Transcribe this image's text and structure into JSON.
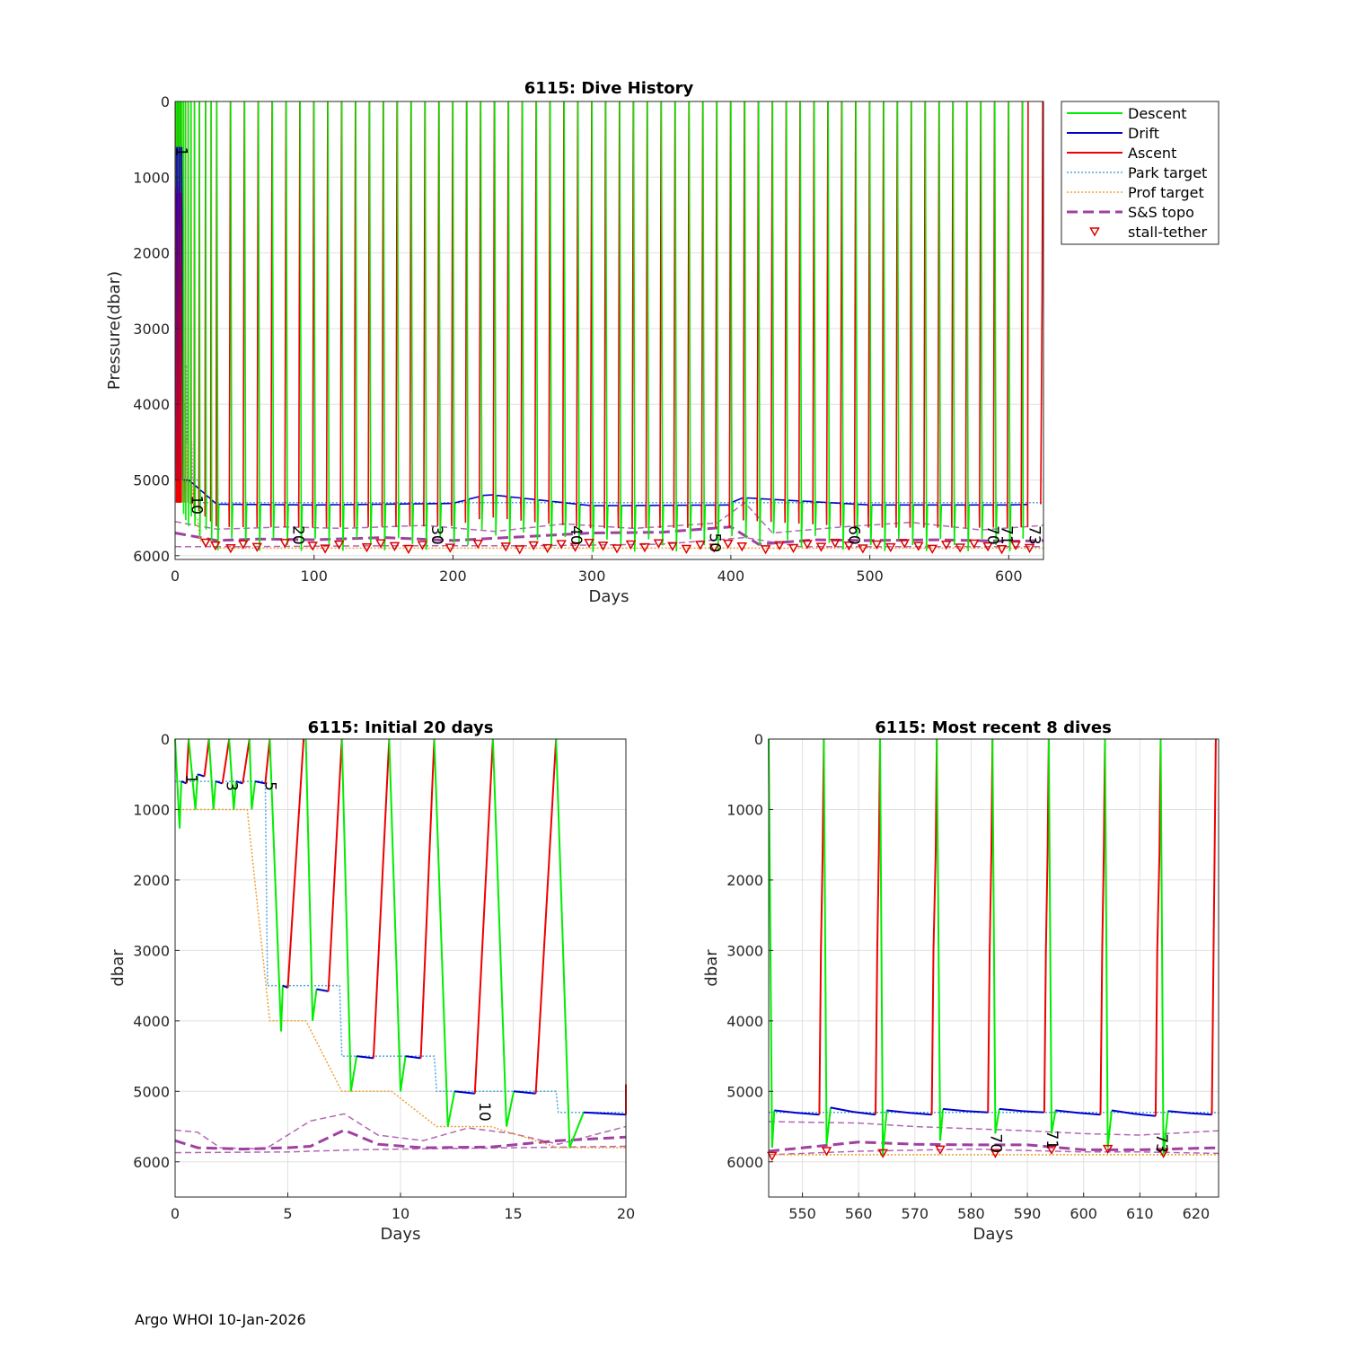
{
  "footer": {
    "credit": "Argo WHOI 10-Jan-2026"
  },
  "colors": {
    "descent": "#00ee00",
    "drift": "#0000cc",
    "ascent": "#ee0000",
    "park_target": "#4da6e0",
    "prof_target": "#f0a030",
    "topo": "#a040a0",
    "stall": "#dd0000",
    "grid": "#e0e0e0"
  },
  "legend": {
    "entries": [
      {
        "label": "Descent",
        "style": "descent"
      },
      {
        "label": "Drift",
        "style": "drift"
      },
      {
        "label": "Ascent",
        "style": "ascent"
      },
      {
        "label": "Park target",
        "style": "park"
      },
      {
        "label": "Prof target",
        "style": "prof"
      },
      {
        "label": "S&S topo",
        "style": "topo"
      },
      {
        "label": "stall-tether",
        "style": "stall"
      }
    ]
  },
  "chart_data": [
    {
      "id": "history",
      "type": "line",
      "title": "6115: Dive History",
      "xlabel": "Days",
      "ylabel": "Pressure(dbar)",
      "xlim": [
        0,
        625
      ],
      "ylim": [
        0,
        6050
      ],
      "xticks": [
        0,
        100,
        200,
        300,
        400,
        500,
        600
      ],
      "yticks": [
        0,
        1000,
        2000,
        3000,
        4000,
        5000,
        6000
      ],
      "dive_days": [
        0.5,
        1,
        1.5,
        2,
        2.5,
        3,
        3.5,
        4,
        4.5,
        6,
        7.5,
        9.5,
        11.5,
        14,
        17.5,
        22,
        26,
        30,
        40,
        50,
        60,
        70,
        80,
        90,
        100,
        110,
        120,
        130,
        140,
        150,
        160,
        170,
        180,
        190,
        200,
        210,
        220,
        230,
        240,
        250,
        260,
        270,
        280,
        290,
        300,
        310,
        320,
        330,
        340,
        350,
        360,
        370,
        380,
        390,
        400,
        410,
        420,
        430,
        440,
        450,
        460,
        470,
        480,
        490,
        500,
        510,
        520,
        530,
        540,
        550,
        560,
        570,
        580,
        590,
        600,
        610,
        614
      ],
      "drift_points": [
        [
          10,
          5000
        ],
        [
          30,
          5320
        ],
        [
          100,
          5330
        ],
        [
          200,
          5310
        ],
        [
          225,
          5190
        ],
        [
          300,
          5340
        ],
        [
          400,
          5330
        ],
        [
          405,
          5230
        ],
        [
          500,
          5330
        ],
        [
          600,
          5330
        ],
        [
          625,
          5320
        ]
      ],
      "park_target": [
        [
          0,
          600
        ],
        [
          4,
          600
        ],
        [
          4.5,
          3500
        ],
        [
          8,
          3500
        ],
        [
          8.5,
          4500
        ],
        [
          12,
          4500
        ],
        [
          12.5,
          5000
        ],
        [
          17,
          5000
        ],
        [
          17.5,
          5300
        ],
        [
          625,
          5300
        ]
      ],
      "prof_target": [
        [
          0,
          1000
        ],
        [
          3,
          1000
        ],
        [
          5,
          4000
        ],
        [
          7,
          4000
        ],
        [
          9,
          5000
        ],
        [
          12,
          5000
        ],
        [
          14,
          5500
        ],
        [
          16,
          5500
        ],
        [
          18,
          5800
        ],
        [
          30,
          5900
        ],
        [
          625,
          5900
        ]
      ],
      "topo_main": [
        [
          0,
          5700
        ],
        [
          30,
          5800
        ],
        [
          60,
          5780
        ],
        [
          100,
          5790
        ],
        [
          150,
          5760
        ],
        [
          200,
          5800
        ],
        [
          250,
          5750
        ],
        [
          300,
          5700
        ],
        [
          350,
          5690
        ],
        [
          400,
          5620
        ],
        [
          420,
          5850
        ],
        [
          460,
          5790
        ],
        [
          500,
          5800
        ],
        [
          550,
          5790
        ],
        [
          600,
          5810
        ],
        [
          625,
          5800
        ]
      ],
      "topo_upper": [
        [
          0,
          5550
        ],
        [
          30,
          5650
        ],
        [
          80,
          5620
        ],
        [
          120,
          5640
        ],
        [
          180,
          5600
        ],
        [
          230,
          5680
        ],
        [
          280,
          5580
        ],
        [
          330,
          5640
        ],
        [
          390,
          5570
        ],
        [
          410,
          5300
        ],
        [
          430,
          5700
        ],
        [
          480,
          5620
        ],
        [
          530,
          5560
        ],
        [
          580,
          5660
        ],
        [
          625,
          5600
        ]
      ],
      "topo_lower": [
        [
          0,
          5880
        ],
        [
          50,
          5880
        ],
        [
          150,
          5870
        ],
        [
          250,
          5870
        ],
        [
          350,
          5850
        ],
        [
          410,
          5760
        ],
        [
          450,
          5880
        ],
        [
          550,
          5880
        ],
        [
          625,
          5880
        ]
      ],
      "stall_days": [
        22,
        29,
        40,
        49,
        59,
        79,
        99,
        108,
        118,
        138,
        148,
        158,
        168,
        178,
        198,
        218,
        238,
        248,
        258,
        268,
        278,
        288,
        298,
        308,
        318,
        328,
        338,
        348,
        358,
        368,
        378,
        388,
        398,
        408,
        425,
        435,
        445,
        455,
        465,
        475,
        485,
        495,
        505,
        515,
        525,
        535,
        545,
        555,
        565,
        575,
        585,
        595,
        605,
        615
      ],
      "annotations": [
        {
          "text": "1",
          "x": 1,
          "y": 600
        },
        {
          "text": "10",
          "x": 12,
          "y": 5200
        },
        {
          "text": "20",
          "x": 85,
          "y": 5600
        },
        {
          "text": "30",
          "x": 185,
          "y": 5600
        },
        {
          "text": "40",
          "x": 285,
          "y": 5600
        },
        {
          "text": "50",
          "x": 385,
          "y": 5700
        },
        {
          "text": "60",
          "x": 485,
          "y": 5600
        },
        {
          "text": "70",
          "x": 585,
          "y": 5600
        },
        {
          "text": "71",
          "x": 595,
          "y": 5600
        },
        {
          "text": "73",
          "x": 615,
          "y": 5600
        }
      ]
    },
    {
      "id": "initial",
      "type": "line",
      "title": "6115: Initial 20 days",
      "xlabel": "Days",
      "ylabel": "dbar",
      "xlim": [
        0,
        20
      ],
      "ylim": [
        0,
        6500
      ],
      "xticks": [
        0,
        5,
        10,
        15,
        20
      ],
      "yticks": [
        0,
        1000,
        2000,
        3000,
        4000,
        5000,
        6000
      ],
      "dives": [
        {
          "desc_start": 0.0,
          "bottom_t": 0.2,
          "bottom_p": 1270,
          "park_p": 600,
          "drift_end": 0.5,
          "asc_end": 0.6
        },
        {
          "desc_start": 0.6,
          "bottom_t": 0.9,
          "bottom_p": 1000,
          "park_p": 500,
          "drift_end": 1.3,
          "asc_end": 1.5
        },
        {
          "desc_start": 1.5,
          "bottom_t": 1.7,
          "bottom_p": 1000,
          "park_p": 600,
          "drift_end": 2.1,
          "asc_end": 2.4
        },
        {
          "desc_start": 2.4,
          "bottom_t": 2.6,
          "bottom_p": 1000,
          "park_p": 600,
          "drift_end": 3.0,
          "asc_end": 3.3
        },
        {
          "desc_start": 3.3,
          "bottom_t": 3.4,
          "bottom_p": 1000,
          "park_p": 600,
          "drift_end": 4.0,
          "asc_end": 4.2
        },
        {
          "desc_start": 4.2,
          "bottom_t": 4.7,
          "bottom_p": 4150,
          "park_p": 3500,
          "drift_end": 5.0,
          "asc_end": 5.7
        },
        {
          "desc_start": 5.8,
          "bottom_t": 6.1,
          "bottom_p": 4000,
          "park_p": 3550,
          "drift_end": 6.8,
          "asc_end": 7.4
        },
        {
          "desc_start": 7.4,
          "bottom_t": 7.8,
          "bottom_p": 5000,
          "park_p": 4500,
          "drift_end": 8.8,
          "asc_end": 9.5
        },
        {
          "desc_start": 9.5,
          "bottom_t": 10.0,
          "bottom_p": 5000,
          "park_p": 4500,
          "drift_end": 10.9,
          "asc_end": 11.5
        },
        {
          "desc_start": 11.5,
          "bottom_t": 12.1,
          "bottom_p": 5500,
          "park_p": 5000,
          "drift_end": 13.3,
          "asc_end": 14.1
        },
        {
          "desc_start": 14.1,
          "bottom_t": 14.7,
          "bottom_p": 5500,
          "park_p": 5000,
          "drift_end": 16.0,
          "asc_end": 16.9
        },
        {
          "desc_start": 16.9,
          "bottom_t": 17.5,
          "bottom_p": 5800,
          "park_p": 5300,
          "drift_end": 20.0,
          "asc_end": 20.2
        }
      ],
      "park_target": [
        [
          0,
          600
        ],
        [
          4,
          600
        ],
        [
          4.1,
          3500
        ],
        [
          7.3,
          3500
        ],
        [
          7.4,
          4500
        ],
        [
          11.5,
          4500
        ],
        [
          11.6,
          5000
        ],
        [
          16.9,
          5000
        ],
        [
          17.0,
          5300
        ],
        [
          20,
          5300
        ]
      ],
      "prof_target": [
        [
          0,
          1000
        ],
        [
          3.2,
          1000
        ],
        [
          4.2,
          4000
        ],
        [
          5.8,
          4000
        ],
        [
          7.4,
          5000
        ],
        [
          9.6,
          5000
        ],
        [
          11.6,
          5500
        ],
        [
          14.0,
          5500
        ],
        [
          17.0,
          5800
        ],
        [
          20,
          5800
        ]
      ],
      "topo_main": [
        [
          0,
          5700
        ],
        [
          1,
          5800
        ],
        [
          3,
          5820
        ],
        [
          5,
          5800
        ],
        [
          6,
          5780
        ],
        [
          7.5,
          5550
        ],
        [
          9,
          5750
        ],
        [
          11,
          5800
        ],
        [
          14,
          5790
        ],
        [
          17,
          5700
        ],
        [
          20,
          5650
        ]
      ],
      "topo_upper": [
        [
          0,
          5550
        ],
        [
          1,
          5580
        ],
        [
          2,
          5800
        ],
        [
          4,
          5820
        ],
        [
          6,
          5420
        ],
        [
          7.5,
          5320
        ],
        [
          9,
          5620
        ],
        [
          11,
          5700
        ],
        [
          13,
          5520
        ],
        [
          15,
          5600
        ],
        [
          17,
          5750
        ],
        [
          20,
          5500
        ]
      ],
      "topo_lower": [
        [
          0,
          5870
        ],
        [
          5,
          5860
        ],
        [
          8,
          5830
        ],
        [
          10,
          5820
        ],
        [
          15,
          5800
        ],
        [
          20,
          5780
        ]
      ],
      "annotations": [
        {
          "text": "1",
          "x": 0.5,
          "y": 500
        },
        {
          "text": "3",
          "x": 2.3,
          "y": 600
        },
        {
          "text": "5",
          "x": 4.0,
          "y": 600
        },
        {
          "text": "10",
          "x": 13.5,
          "y": 5150
        }
      ]
    },
    {
      "id": "recent",
      "type": "line",
      "title": "6115: Most recent 8 dives",
      "xlabel": "Days",
      "ylabel": "dbar",
      "xlim": [
        544,
        624
      ],
      "ylim": [
        0,
        6500
      ],
      "xticks": [
        550,
        560,
        570,
        580,
        590,
        600,
        610,
        620
      ],
      "yticks": [
        0,
        1000,
        2000,
        3000,
        4000,
        5000,
        6000
      ],
      "dives": [
        {
          "desc_start": 544,
          "bottom_t": 544.6,
          "bottom_p": 5800,
          "drift_start": 545,
          "drift_end": 553,
          "park_start": 5270,
          "park_end": 5330,
          "asc_end": 553.8
        },
        {
          "desc_start": 553.8,
          "bottom_t": 554.3,
          "bottom_p": 5750,
          "drift_start": 555,
          "drift_end": 563,
          "park_start": 5230,
          "park_end": 5330,
          "asc_end": 563.8
        },
        {
          "desc_start": 563.8,
          "bottom_t": 564.3,
          "bottom_p": 5900,
          "drift_start": 565,
          "drift_end": 573,
          "park_start": 5270,
          "park_end": 5330,
          "asc_end": 573.9
        },
        {
          "desc_start": 573.9,
          "bottom_t": 574.5,
          "bottom_p": 5700,
          "drift_start": 575,
          "drift_end": 583,
          "park_start": 5250,
          "park_end": 5300,
          "asc_end": 583.8
        },
        {
          "desc_start": 583.8,
          "bottom_t": 584.3,
          "bottom_p": 5600,
          "drift_start": 585,
          "drift_end": 593,
          "park_start": 5250,
          "park_end": 5300,
          "asc_end": 593.8
        },
        {
          "desc_start": 593.8,
          "bottom_t": 594.3,
          "bottom_p": 5600,
          "drift_start": 595,
          "drift_end": 603,
          "park_start": 5270,
          "park_end": 5330,
          "asc_end": 603.8
        },
        {
          "desc_start": 603.8,
          "bottom_t": 604.3,
          "bottom_p": 5800,
          "drift_start": 605,
          "drift_end": 612.8,
          "park_start": 5270,
          "park_end": 5350,
          "asc_end": 613.7
        },
        {
          "desc_start": 613.7,
          "bottom_t": 614.2,
          "bottom_p": 5900,
          "drift_start": 615,
          "drift_end": 622.8,
          "park_start": 5280,
          "park_end": 5330,
          "asc_end": 623.5
        }
      ],
      "park_target": [
        [
          544,
          5300
        ],
        [
          624,
          5300
        ]
      ],
      "prof_target": [
        [
          544,
          5900
        ],
        [
          624,
          5900
        ]
      ],
      "topo_main": [
        [
          544,
          5850
        ],
        [
          560,
          5720
        ],
        [
          570,
          5750
        ],
        [
          580,
          5760
        ],
        [
          590,
          5760
        ],
        [
          600,
          5830
        ],
        [
          610,
          5830
        ],
        [
          624,
          5800
        ]
      ],
      "topo_upper": [
        [
          544,
          5430
        ],
        [
          560,
          5450
        ],
        [
          570,
          5500
        ],
        [
          580,
          5530
        ],
        [
          590,
          5560
        ],
        [
          600,
          5600
        ],
        [
          610,
          5620
        ],
        [
          624,
          5560
        ]
      ],
      "topo_lower": [
        [
          544,
          5900
        ],
        [
          560,
          5850
        ],
        [
          580,
          5820
        ],
        [
          600,
          5860
        ],
        [
          610,
          5860
        ],
        [
          624,
          5880
        ]
      ],
      "stall_days": [
        544.6,
        554.3,
        564.3,
        574.5,
        584.3,
        594.3,
        604.3,
        614.2
      ],
      "stall_pressures": [
        5920,
        5850,
        5880,
        5830,
        5880,
        5830,
        5820,
        5880
      ],
      "annotations": [
        {
          "text": "70",
          "x": 583.5,
          "y": 5600
        },
        {
          "text": "71",
          "x": 593.5,
          "y": 5550
        },
        {
          "text": "73",
          "x": 613.0,
          "y": 5600
        }
      ]
    }
  ]
}
